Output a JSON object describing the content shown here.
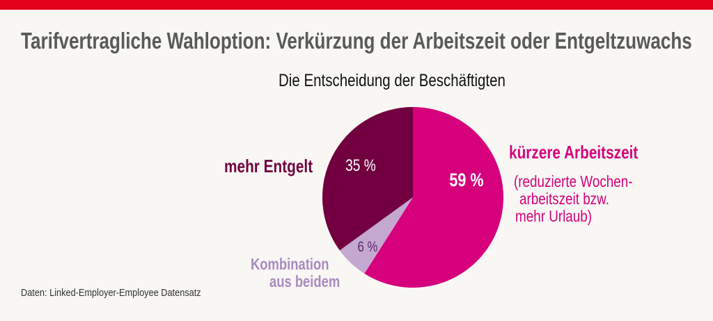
{
  "title": "Tarifvertragliche Wahloption: Verkürzung der Arbeitszeit oder Entgeltzuwachs",
  "source": "Daten: Linked-Employer-Employee Datensatz",
  "colors": {
    "top_bar": "#e2001a",
    "background": "#f8f7f4"
  },
  "chart_data": {
    "type": "pie",
    "title": "Die Entscheidung der Beschäftigten",
    "start": "12 o'clock, clockwise",
    "slices": [
      {
        "label": "kürzere Arbeitszeit",
        "note": [
          "(reduzierte Wochen-",
          "arbeitszeit bzw.",
          "mehr Urlaub)"
        ],
        "value": 59,
        "value_label": "59 %",
        "color": "#d6007c"
      },
      {
        "label_lines": [
          "Kombination",
          "aus beidem"
        ],
        "value": 6,
        "value_label": "6 %",
        "color": "#c4a8d0",
        "label_color": "#a98bc0"
      },
      {
        "label": "mehr Entgelt",
        "value": 35,
        "value_label": "35 %",
        "color": "#720040"
      }
    ]
  }
}
